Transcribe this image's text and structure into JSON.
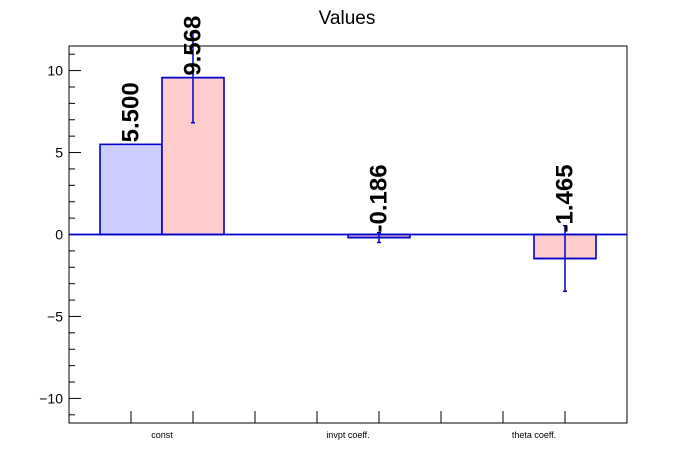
{
  "chart_data": {
    "type": "bar",
    "title": "Values",
    "xlabel": "",
    "ylabel": "",
    "categories": [
      "const",
      "invpt coeff.",
      "theta coeff."
    ],
    "ylim": [
      -11.5,
      11.5
    ],
    "yticks": [
      -10,
      -5,
      0,
      5,
      10
    ],
    "ytick_labels": [
      "−10",
      "−5",
      "0",
      "5",
      "10"
    ],
    "series": [
      {
        "color": "#ccccff",
        "values": [
          5.5,
          null,
          null
        ],
        "labels": [
          "5.500",
          "",
          ""
        ],
        "errors": [
          null,
          null,
          null
        ]
      },
      {
        "color": "#ffcccc",
        "values": [
          9.568,
          -0.186,
          -1.465
        ],
        "labels": [
          "9.568",
          "-0.186",
          "-1.465"
        ],
        "errors": [
          2.75,
          0.3,
          2.0
        ]
      }
    ],
    "edge_color": "#0000cc",
    "grid": false,
    "legend": "none"
  }
}
